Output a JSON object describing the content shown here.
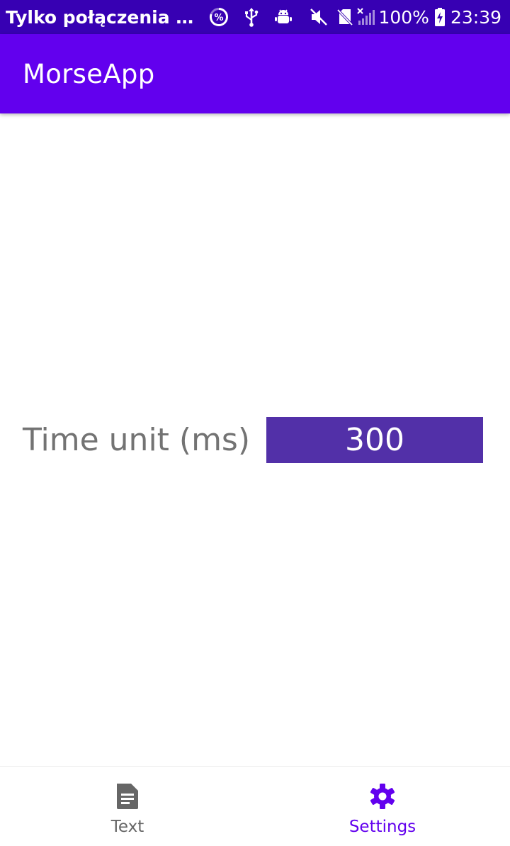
{
  "status_bar": {
    "notification_title": "Tylko połączenia alarmowe",
    "battery": "100%",
    "time": "23:39",
    "icons": [
      "data-saver-icon",
      "usb-icon",
      "android-debug-icon",
      "mute-icon",
      "no-sim-icon",
      "no-signal-icon",
      "battery-charging-icon"
    ]
  },
  "app_bar": {
    "title": "MorseApp"
  },
  "settings": {
    "time_unit_label": "Time unit (ms)",
    "time_unit_value": "300"
  },
  "bottom_nav": {
    "items": [
      {
        "label": "Text",
        "icon": "document-icon",
        "active": false
      },
      {
        "label": "Settings",
        "icon": "gear-icon",
        "active": true
      }
    ]
  },
  "colors": {
    "status_bar": "#3700b3",
    "primary": "#6200ee",
    "input_background": "#5230a8",
    "label_text": "#737373",
    "nav_inactive": "#666666"
  }
}
